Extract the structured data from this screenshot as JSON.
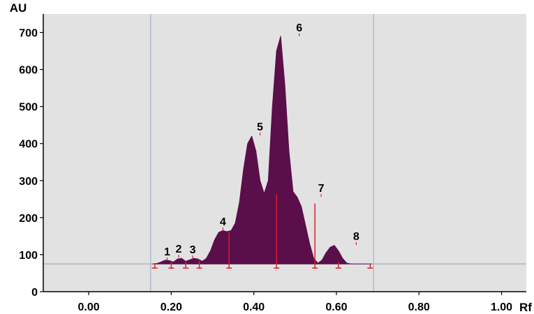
{
  "chart_data": {
    "type": "area",
    "xlabel": "Rf",
    "ylabel": "AU",
    "xlim": [
      -0.11,
      1.06
    ],
    "ylim": [
      0,
      750
    ],
    "xticks": [
      0.0,
      0.2,
      0.4,
      0.6,
      0.8,
      1.0
    ],
    "xtick_labels": [
      "0.00",
      "0.20",
      "0.40",
      "0.60",
      "0.80",
      "1.00"
    ],
    "yticks": [
      0,
      100,
      200,
      300,
      400,
      500,
      600,
      700
    ],
    "ytick_labels": [
      "0",
      "100",
      "200",
      "300",
      "400",
      "500",
      "600",
      "700"
    ],
    "grid": false,
    "background": "#e2e2e2",
    "fill_color": "#5a0f4a",
    "baseline_au": 75,
    "baseline_color": "#9aa4c2",
    "region_lines_x": [
      0.15,
      0.69
    ],
    "region_line_color": "#a3b1c6",
    "boundary_color": "#e0202a",
    "profile": {
      "x": [
        0.155,
        0.165,
        0.175,
        0.185,
        0.195,
        0.205,
        0.215,
        0.225,
        0.235,
        0.245,
        0.255,
        0.265,
        0.275,
        0.285,
        0.295,
        0.305,
        0.315,
        0.325,
        0.335,
        0.345,
        0.355,
        0.365,
        0.375,
        0.385,
        0.395,
        0.405,
        0.415,
        0.425,
        0.435,
        0.445,
        0.455,
        0.465,
        0.475,
        0.485,
        0.495,
        0.505,
        0.515,
        0.525,
        0.535,
        0.545,
        0.555,
        0.565,
        0.575,
        0.585,
        0.595,
        0.605,
        0.615,
        0.625,
        0.635,
        0.645,
        0.655,
        0.665,
        0.675,
        0.685
      ],
      "y": [
        75,
        76,
        80,
        85,
        84,
        80,
        88,
        90,
        82,
        86,
        90,
        88,
        82,
        90,
        110,
        140,
        160,
        165,
        162,
        165,
        185,
        240,
        330,
        400,
        420,
        380,
        300,
        265,
        300,
        500,
        650,
        690,
        560,
        380,
        270,
        255,
        230,
        180,
        130,
        90,
        77,
        85,
        105,
        120,
        125,
        110,
        90,
        77,
        75,
        75,
        75,
        75,
        75,
        75
      ]
    },
    "boundaries": [
      {
        "x": 0.16,
        "y": 75
      },
      {
        "x": 0.2,
        "y": 80
      },
      {
        "x": 0.235,
        "y": 82
      },
      {
        "x": 0.268,
        "y": 85
      },
      {
        "x": 0.34,
        "y": 160
      },
      {
        "x": 0.455,
        "y": 262
      },
      {
        "x": 0.548,
        "y": 238
      },
      {
        "x": 0.605,
        "y": 80
      },
      {
        "x": 0.682,
        "y": 75
      }
    ],
    "peaks": [
      {
        "label": "1",
        "x": 0.19,
        "y": 85
      },
      {
        "label": "2",
        "x": 0.218,
        "y": 92
      },
      {
        "label": "3",
        "x": 0.252,
        "y": 90
      },
      {
        "label": "4",
        "x": 0.325,
        "y": 166
      },
      {
        "label": "5",
        "x": 0.415,
        "y": 422
      },
      {
        "label": "6",
        "x": 0.51,
        "y": 690
      },
      {
        "label": "7",
        "x": 0.563,
        "y": 256
      },
      {
        "label": "8",
        "x": 0.648,
        "y": 126
      }
    ]
  }
}
